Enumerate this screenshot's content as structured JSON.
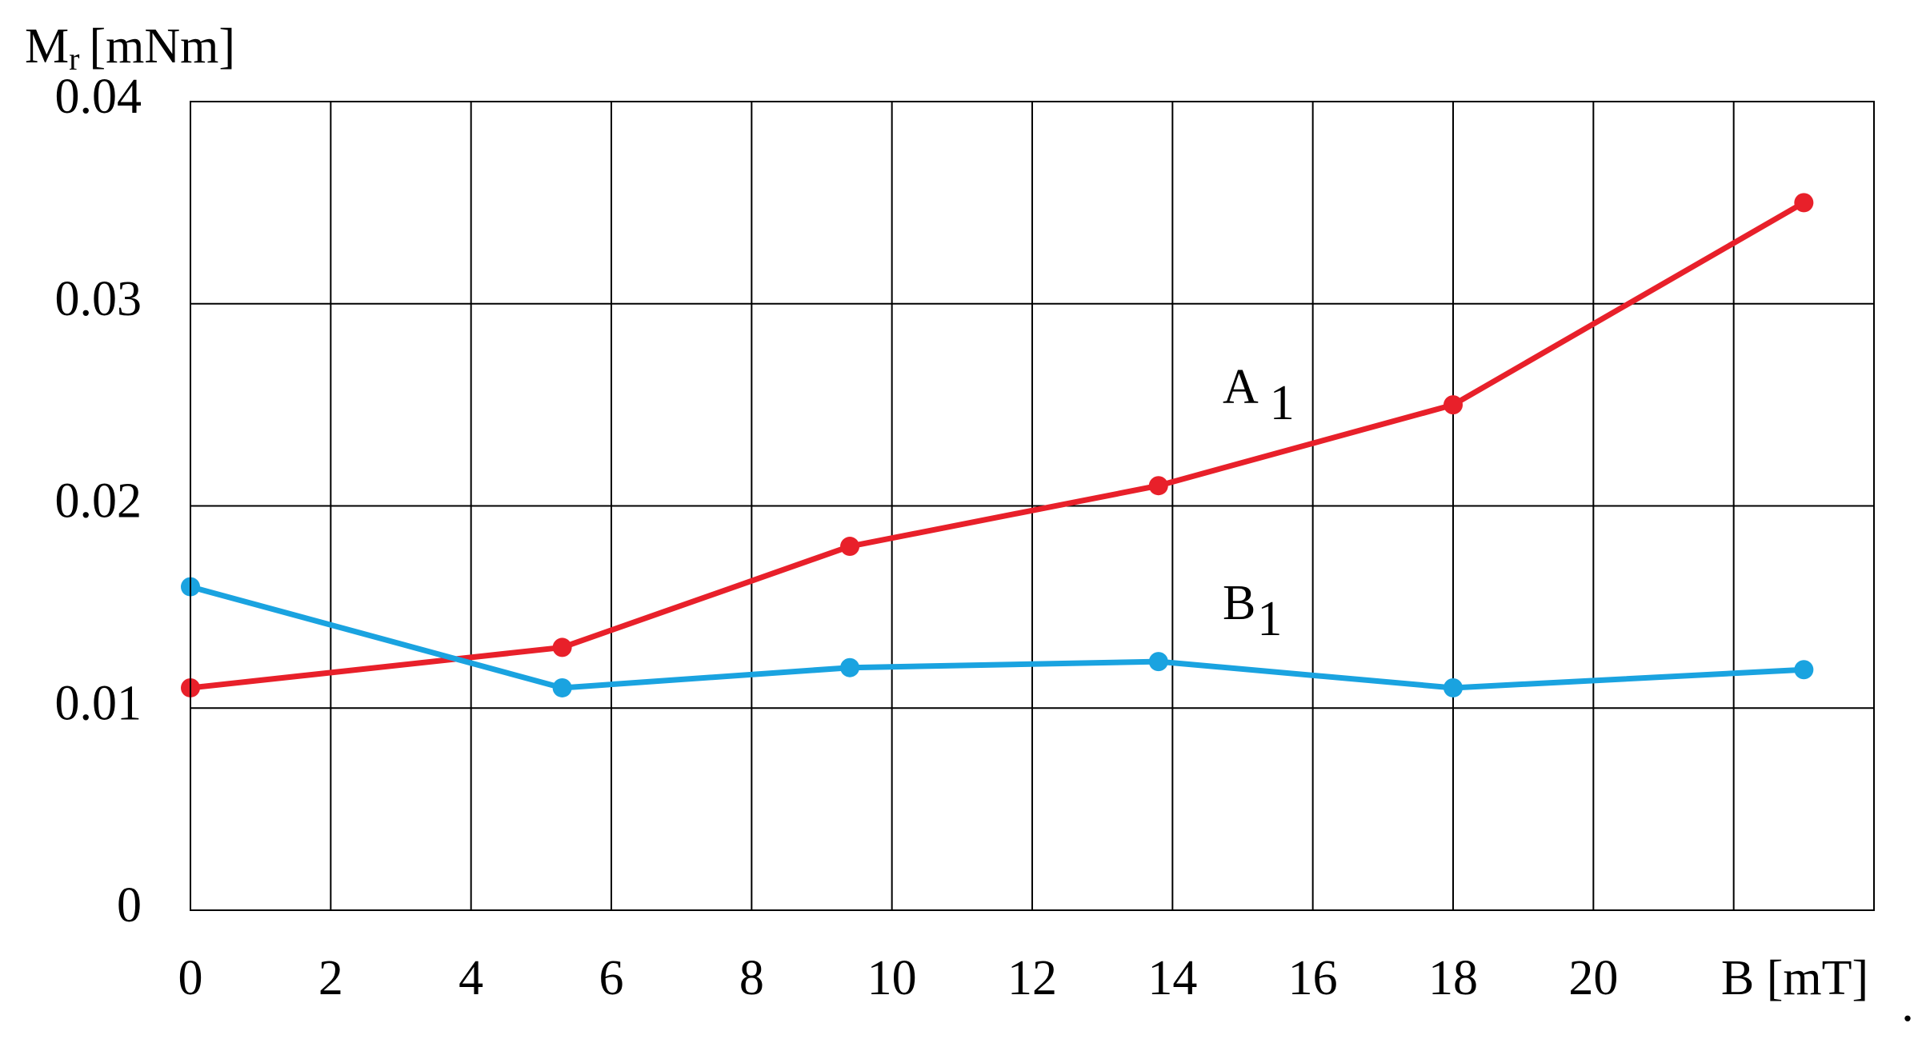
{
  "chart_data": {
    "type": "line",
    "ylabel": {
      "main": "M",
      "sub": "r",
      "unit": "[mNm]"
    },
    "xlabel": "B [mT]",
    "trailing_text": ".",
    "xlim": [
      0,
      24
    ],
    "ylim": [
      0,
      0.04
    ],
    "xticks": [
      0,
      2,
      4,
      6,
      8,
      10,
      12,
      14,
      16,
      18,
      20,
      {
        "value": 22,
        "label": null
      },
      {
        "value": 24,
        "label": null
      }
    ],
    "yticks": [
      0,
      0.01,
      0.02,
      0.03,
      0.04
    ],
    "grid": true,
    "series": [
      {
        "name": "A",
        "subscript": "1",
        "color": "#e8202a",
        "x": [
          0,
          5.3,
          9.4,
          13.8,
          18,
          23
        ],
        "values": [
          0.011,
          0.013,
          0.018,
          0.021,
          0.025,
          0.035
        ]
      },
      {
        "name": "B",
        "subscript": "1",
        "color": "#1aa3e0",
        "x": [
          0,
          5.3,
          9.4,
          13.8,
          18,
          23
        ],
        "values": [
          0.016,
          0.011,
          0.012,
          0.0123,
          0.011,
          0.0119
        ]
      }
    ]
  }
}
